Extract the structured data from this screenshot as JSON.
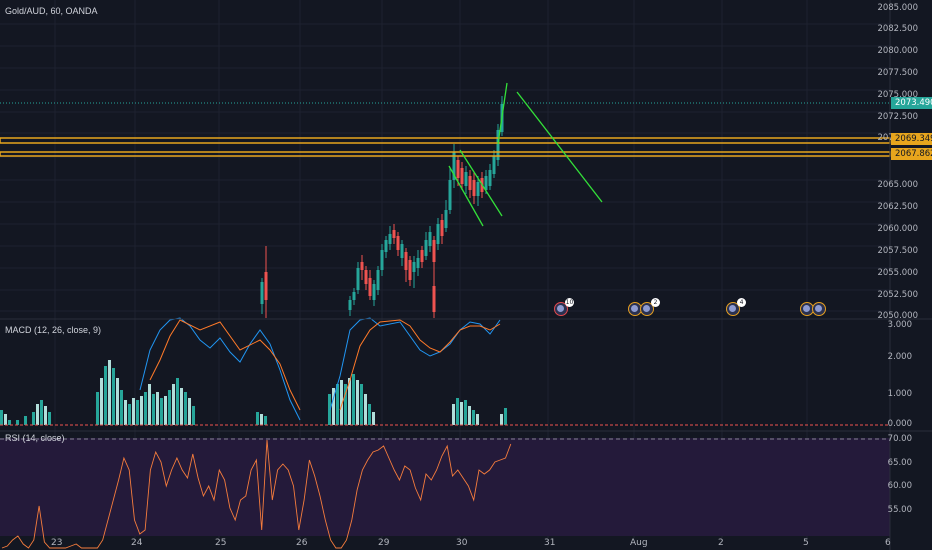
{
  "header": {
    "symbol": "Gold/AUD, 60, OANDA"
  },
  "price_axis": {
    "ticks": [
      "2085.000",
      "2082.500",
      "2080.000",
      "2077.500",
      "2075.000",
      "2072.500",
      "2070.000",
      "2065.000",
      "2062.500",
      "2060.000",
      "2057.500",
      "2055.000",
      "2052.500",
      "2050.000"
    ],
    "last_price": {
      "value": "2073.490",
      "color": "#26a69a"
    },
    "levels": [
      {
        "value": "2069.349",
        "color": "#e7a51d"
      },
      {
        "value": "2067.862",
        "color": "#e7a51d"
      }
    ]
  },
  "macd": {
    "label": "MACD (12, 26, close, 9)",
    "ticks": [
      "3.000",
      "2.000",
      "1.000",
      "0.000"
    ]
  },
  "rsi": {
    "label": "RSI (14, close)",
    "ticks": [
      "70.00",
      "65.00",
      "60.00",
      "55.00"
    ]
  },
  "time_axis": {
    "labels": [
      "23",
      "24",
      "25",
      "26",
      "29",
      "30",
      "31",
      "Aug",
      "2",
      "5",
      "6"
    ]
  },
  "events": [
    {
      "count": "10",
      "style": "red"
    },
    {
      "count": "",
      "style": "gold"
    },
    {
      "count": "2",
      "style": "gold"
    },
    {
      "count": "4",
      "style": "gold"
    },
    {
      "count": "",
      "style": "gold"
    },
    {
      "count": "",
      "style": "gold"
    }
  ],
  "colors": {
    "up": "#26a69a",
    "down": "#ef5350",
    "trendline": "#33e039",
    "rsi": "#f57c3d",
    "macd": "#2196f3",
    "signal": "#ff7a29"
  }
}
